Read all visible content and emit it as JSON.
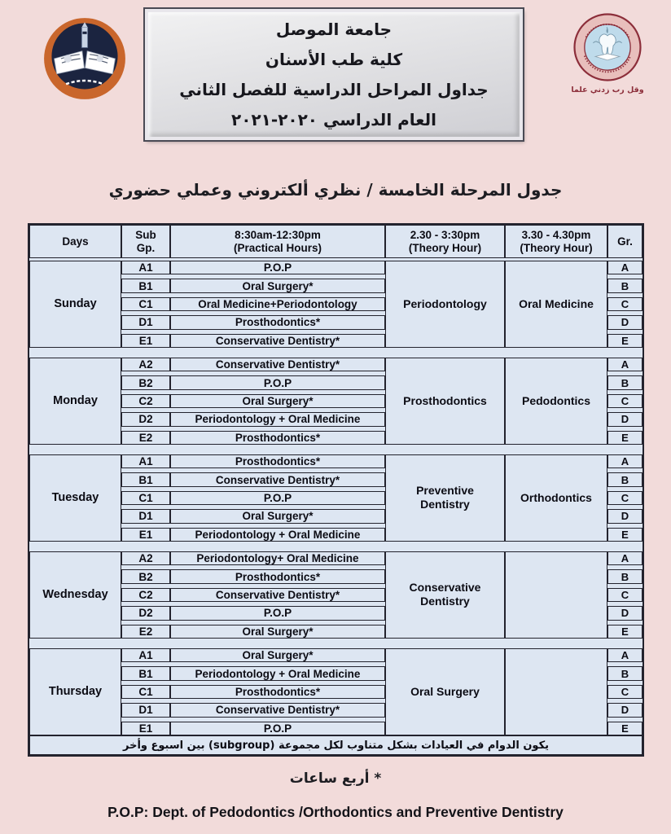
{
  "colors": {
    "page_bg": "#f2dbda",
    "table_bg": "#dde6f2",
    "table_border": "#23232e",
    "uni_logo_orange": "#c9662c",
    "uni_logo_navy": "#1b2440",
    "dent_logo_maroon": "#8c2e3a",
    "dent_logo_blue": "#bfdbeb"
  },
  "logos": {
    "left": "university-of-mosul-logo",
    "right": "college-of-dentistry-logo",
    "right_caption": "وقل رب زدني علما"
  },
  "header": {
    "title_lines": [
      "جامعة الموصل",
      "كلية طب الأسنان",
      "جداول المراحل الدراسية للفصل الثاني",
      "العام الدراسي ٢٠٢٠-٢٠٢١"
    ]
  },
  "subtitle": "جدول المرحلة الخامسة / نظري ألكتروني وعملي حضوري",
  "table": {
    "header": [
      {
        "key": "days",
        "lines": [
          "Days"
        ]
      },
      {
        "key": "subgp",
        "lines": [
          "Sub",
          "Gp."
        ]
      },
      {
        "key": "practical",
        "lines": [
          "8:30am-12:30pm",
          "(Practical Hours)"
        ]
      },
      {
        "key": "theory1",
        "lines": [
          "2.30 - 3:30pm",
          "(Theory Hour)"
        ]
      },
      {
        "key": "theory2",
        "lines": [
          "3.30 - 4.30pm",
          "(Theory Hour)"
        ]
      },
      {
        "key": "gr",
        "lines": [
          "Gr."
        ]
      }
    ],
    "days": [
      {
        "day": "Sunday",
        "subgroups": [
          "A1",
          "B1",
          "C1",
          "D1",
          "E1"
        ],
        "courses": [
          "P.O.P",
          "Oral Surgery*",
          "Oral Medicine+Periodontology",
          "Prosthodontics*",
          "Conservative Dentistry*"
        ],
        "theory1": "Periodontology",
        "theory2": "Oral Medicine",
        "groups": [
          "A",
          "B",
          "C",
          "D",
          "E"
        ]
      },
      {
        "day": "Monday",
        "subgroups": [
          "A2",
          "B2",
          "C2",
          "D2",
          "E2"
        ],
        "courses": [
          "Conservative Dentistry*",
          "P.O.P",
          "Oral Surgery*",
          "Periodontology + Oral Medicine",
          "Prosthodontics*"
        ],
        "theory1": "Prosthodontics",
        "theory2": "Pedodontics",
        "groups": [
          "A",
          "B",
          "C",
          "D",
          "E"
        ]
      },
      {
        "day": "Tuesday",
        "subgroups": [
          "A1",
          "B1",
          "C1",
          "D1",
          "E1"
        ],
        "courses": [
          "Prosthodontics*",
          "Conservative Dentistry*",
          "P.O.P",
          "Oral Surgery*",
          "Periodontology + Oral Medicine"
        ],
        "theory1": "Preventive Dentistry",
        "theory2": "Orthodontics",
        "groups": [
          "A",
          "B",
          "C",
          "D",
          "E"
        ]
      },
      {
        "day": "Wednesday",
        "subgroups": [
          "A2",
          "B2",
          "C2",
          "D2",
          "E2"
        ],
        "courses": [
          "Periodontology+ Oral Medicine",
          "Prosthodontics*",
          "Conservative Dentistry*",
          "P.O.P",
          "Oral Surgery*"
        ],
        "theory1": "Conservative Dentistry",
        "theory2": "",
        "groups": [
          "A",
          "B",
          "C",
          "D",
          "E"
        ]
      },
      {
        "day": "Thursday",
        "subgroups": [
          "A1",
          "B1",
          "C1",
          "D1",
          "E1"
        ],
        "courses": [
          "Oral Surgery*",
          "Periodontology + Oral Medicine",
          "Prosthodontics*",
          "Conservative Dentistry*",
          "P.O.P"
        ],
        "theory1": "Oral Surgery",
        "theory2": "",
        "groups": [
          "A",
          "B",
          "C",
          "D",
          "E"
        ]
      }
    ],
    "note": "يكون الدوام في العيادات بشكل متناوب لكل مجموعة (subgroup) بين اسبوع وأخر"
  },
  "footnotes": {
    "hours": "* أربع ساعات",
    "pop": "P.O.P: Dept. of Pedodontics /Orthodontics and Preventive Dentistry"
  }
}
